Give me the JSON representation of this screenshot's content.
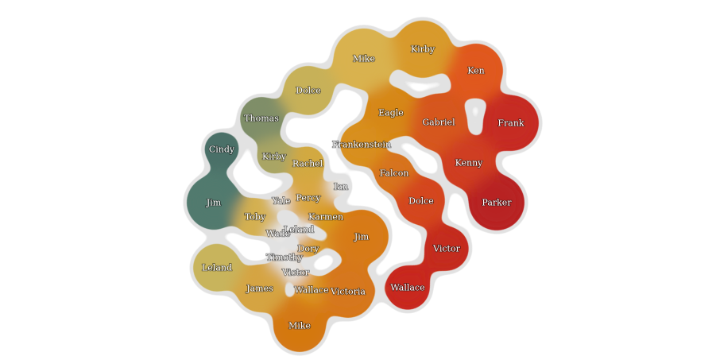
{
  "nodes": [
    {
      "id": "cindy",
      "label": "Cindy",
      "color": "#4a7068"
    },
    {
      "id": "jim-left",
      "label": "Jim",
      "color": "#517a6e"
    },
    {
      "id": "thomas",
      "label": "Thomas",
      "color": "#7f8e68"
    },
    {
      "id": "kirby-mid",
      "label": "Kirby",
      "color": "#a9a564"
    },
    {
      "id": "dolce-top",
      "label": "Dolce",
      "color": "#c7b158"
    },
    {
      "id": "mike-top",
      "label": "Mike",
      "color": "#d9b24e"
    },
    {
      "id": "kirby-top",
      "label": "Kirby",
      "color": "#d89a2a"
    },
    {
      "id": "ken",
      "label": "Ken",
      "color": "#e0581f"
    },
    {
      "id": "eagle",
      "label": "Eagle",
      "color": "#d68718"
    },
    {
      "id": "gabriel",
      "label": "Gabriel",
      "color": "#d6561c"
    },
    {
      "id": "frank",
      "label": "Frank",
      "color": "#c62a22"
    },
    {
      "id": "frankenstein",
      "label": "Frankenstein",
      "color": "#d88f1c"
    },
    {
      "id": "kenny",
      "label": "Kenny",
      "color": "#cf3d20"
    },
    {
      "id": "parker",
      "label": "Parker",
      "color": "#b82222"
    },
    {
      "id": "rachel",
      "label": "Rachel",
      "color": "#d2a941"
    },
    {
      "id": "falcon",
      "label": "Falcon",
      "color": "#d7731a"
    },
    {
      "id": "dolce-right",
      "label": "Dolce",
      "color": "#d4461d"
    },
    {
      "id": "victor-right",
      "label": "Victor",
      "color": "#c42a1c"
    },
    {
      "id": "wallace-right",
      "label": "Wallace",
      "color": "#c8281c"
    },
    {
      "id": "yale",
      "label": "Yale",
      "color": "#e6e6e6"
    },
    {
      "id": "percy",
      "label": "Percy",
      "color": "#d9a742"
    },
    {
      "id": "ian",
      "label": "Ian",
      "color": "#e6e6e6"
    },
    {
      "id": "toby",
      "label": "Toby",
      "color": "#d4b050"
    },
    {
      "id": "karmen",
      "label": "Karmen",
      "color": "#d8981e"
    },
    {
      "id": "leland-small",
      "label": "Leland",
      "color": "#e6e6e6"
    },
    {
      "id": "wade",
      "label": "Wade",
      "color": "#e6e6e6"
    },
    {
      "id": "jim-center",
      "label": "Jim",
      "color": "#d77a15"
    },
    {
      "id": "dory",
      "label": "Dory",
      "color": "#d9a035"
    },
    {
      "id": "timothy",
      "label": "Timothy",
      "color": "#e6e6e6"
    },
    {
      "id": "leland",
      "label": "Leland",
      "color": "#c8b45c"
    },
    {
      "id": "victor-small",
      "label": "Victor",
      "color": "#e6e6e6"
    },
    {
      "id": "james",
      "label": "James",
      "color": "#d5a442"
    },
    {
      "id": "wallace-center",
      "label": "Wallace",
      "color": "#dc9a22"
    },
    {
      "id": "victoria",
      "label": "Victoria",
      "color": "#d6771a"
    },
    {
      "id": "mike-bottom",
      "label": "Mike",
      "color": "#d47812"
    }
  ],
  "links": [
    [
      "cindy",
      "jim-left"
    ],
    [
      "jim-left",
      "toby"
    ],
    [
      "thomas",
      "kirby-mid"
    ],
    [
      "thomas",
      "dolce-top"
    ],
    [
      "kirby-mid",
      "rachel"
    ],
    [
      "dolce-top",
      "mike-top"
    ],
    [
      "mike-top",
      "kirby-top"
    ],
    [
      "mike-top",
      "eagle"
    ],
    [
      "kirby-top",
      "ken"
    ],
    [
      "ken",
      "gabriel"
    ],
    [
      "ken",
      "frank"
    ],
    [
      "eagle",
      "gabriel"
    ],
    [
      "eagle",
      "frankenstein"
    ],
    [
      "gabriel",
      "kenny"
    ],
    [
      "frank",
      "kenny"
    ],
    [
      "kenny",
      "parker"
    ],
    [
      "frankenstein",
      "falcon"
    ],
    [
      "falcon",
      "dolce-right"
    ],
    [
      "dolce-right",
      "victor-right"
    ],
    [
      "victor-right",
      "wallace-right"
    ],
    [
      "rachel",
      "percy"
    ],
    [
      "percy",
      "karmen"
    ],
    [
      "percy",
      "yale"
    ],
    [
      "percy",
      "ian"
    ],
    [
      "karmen",
      "jim-center"
    ],
    [
      "toby",
      "wade"
    ],
    [
      "jim-center",
      "victoria"
    ],
    [
      "victoria",
      "wallace-center"
    ],
    [
      "victoria",
      "mike-bottom"
    ],
    [
      "wallace-center",
      "victor-small"
    ],
    [
      "james",
      "mike-bottom"
    ],
    [
      "leland",
      "james"
    ],
    [
      "james",
      "timothy"
    ],
    [
      "dory",
      "jim-center"
    ]
  ]
}
